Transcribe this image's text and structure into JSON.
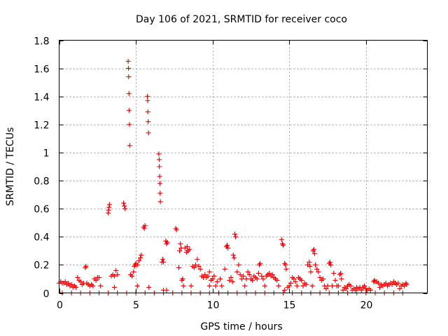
{
  "chart_data": {
    "type": "scatter",
    "title": "Day 106 of 2021, SRMTID for receiver coco",
    "xlabel": "GPS time / hours",
    "ylabel": "SRMTID / TECUs",
    "xlim": [
      0,
      24
    ],
    "ylim": [
      0,
      1.8
    ],
    "xticks": [
      0,
      5,
      10,
      15,
      20
    ],
    "xtick_labels": [
      "0",
      "5",
      "10",
      "15",
      "20"
    ],
    "yticks": [
      0,
      0.2,
      0.4,
      0.6,
      0.8,
      1,
      1.2,
      1.4,
      1.6,
      1.8
    ],
    "ytick_labels": [
      "0",
      "0.2",
      "0.4",
      "0.6",
      "0.8",
      "1",
      "1.2",
      "1.4",
      "1.6",
      "1.8"
    ],
    "grid": true,
    "marker": "+",
    "color": "#e00000",
    "series": [
      {
        "name": "SRMTID",
        "points": [
          [
            0.0,
            0.07
          ],
          [
            0.1,
            0.08
          ],
          [
            0.2,
            0.07
          ],
          [
            0.3,
            0.07
          ],
          [
            0.4,
            0.08
          ],
          [
            0.5,
            0.06
          ],
          [
            0.6,
            0.07
          ],
          [
            0.7,
            0.05
          ],
          [
            0.8,
            0.06
          ],
          [
            0.9,
            0.04
          ],
          [
            1.0,
            0.05
          ],
          [
            1.1,
            0.04
          ],
          [
            1.2,
            0.11
          ],
          [
            1.3,
            0.09
          ],
          [
            1.4,
            0.08
          ],
          [
            1.5,
            0.06
          ],
          [
            1.6,
            0.07
          ],
          [
            1.7,
            0.18
          ],
          [
            1.75,
            0.19
          ],
          [
            1.8,
            0.07
          ],
          [
            1.9,
            0.06
          ],
          [
            2.0,
            0.05
          ],
          [
            2.1,
            0.06
          ],
          [
            2.2,
            0.05
          ],
          [
            2.3,
            0.1
          ],
          [
            2.4,
            0.09
          ],
          [
            2.5,
            0.11
          ],
          [
            2.6,
            0.11
          ],
          [
            2.7,
            0.05
          ],
          [
            3.2,
            0.57
          ],
          [
            3.22,
            0.59
          ],
          [
            3.25,
            0.61
          ],
          [
            3.28,
            0.63
          ],
          [
            3.4,
            0.12
          ],
          [
            3.5,
            0.13
          ],
          [
            3.6,
            0.12
          ],
          [
            3.7,
            0.16
          ],
          [
            3.8,
            0.13
          ],
          [
            3.6,
            0.04
          ],
          [
            4.2,
            0.64
          ],
          [
            4.25,
            0.62
          ],
          [
            4.3,
            0.6
          ],
          [
            4.5,
            1.65
          ],
          [
            4.52,
            1.6
          ],
          [
            4.53,
            1.54
          ],
          [
            4.55,
            1.42
          ],
          [
            4.56,
            1.3
          ],
          [
            4.58,
            1.2
          ],
          [
            4.6,
            1.05
          ],
          [
            4.65,
            0.13
          ],
          [
            4.75,
            0.12
          ],
          [
            4.85,
            0.15
          ],
          [
            4.9,
            0.19
          ],
          [
            4.95,
            0.2
          ],
          [
            5.0,
            0.21
          ],
          [
            5.1,
            0.2
          ],
          [
            5.2,
            0.23
          ],
          [
            5.3,
            0.25
          ],
          [
            5.35,
            0.27
          ],
          [
            5.1,
            0.05
          ],
          [
            5.5,
            0.47
          ],
          [
            5.55,
            0.46
          ],
          [
            5.6,
            0.48
          ],
          [
            5.75,
            1.4
          ],
          [
            5.77,
            1.37
          ],
          [
            5.78,
            1.29
          ],
          [
            5.8,
            1.22
          ],
          [
            5.82,
            1.14
          ],
          [
            5.85,
            0.04
          ],
          [
            6.5,
            0.99
          ],
          [
            6.52,
            0.95
          ],
          [
            6.53,
            0.9
          ],
          [
            6.55,
            0.83
          ],
          [
            6.57,
            0.78
          ],
          [
            6.58,
            0.71
          ],
          [
            6.6,
            0.65
          ],
          [
            6.7,
            0.22
          ],
          [
            6.75,
            0.24
          ],
          [
            6.8,
            0.22
          ],
          [
            6.8,
            0.02
          ],
          [
            6.95,
            0.37
          ],
          [
            7.0,
            0.35
          ],
          [
            7.05,
            0.36
          ],
          [
            7.0,
            0.02
          ],
          [
            7.6,
            0.46
          ],
          [
            7.65,
            0.45
          ],
          [
            7.8,
            0.18
          ],
          [
            7.85,
            0.3
          ],
          [
            7.9,
            0.35
          ],
          [
            7.95,
            0.32
          ],
          [
            8.0,
            0.09
          ],
          [
            8.05,
            0.1
          ],
          [
            8.1,
            0.05
          ],
          [
            8.2,
            0.32
          ],
          [
            8.3,
            0.29
          ],
          [
            8.35,
            0.33
          ],
          [
            8.4,
            0.3
          ],
          [
            8.5,
            0.31
          ],
          [
            8.6,
            0.05
          ],
          [
            8.7,
            0.19
          ],
          [
            8.8,
            0.18
          ],
          [
            8.9,
            0.2
          ],
          [
            9.0,
            0.24
          ],
          [
            9.1,
            0.19
          ],
          [
            9.2,
            0.17
          ],
          [
            9.3,
            0.12
          ],
          [
            9.4,
            0.11
          ],
          [
            9.5,
            0.13
          ],
          [
            9.6,
            0.11
          ],
          [
            9.7,
            0.12
          ],
          [
            9.8,
            0.15
          ],
          [
            9.9,
            0.09
          ],
          [
            10.0,
            0.1
          ],
          [
            9.8,
            0.05
          ],
          [
            10.1,
            0.12
          ],
          [
            10.2,
            0.05
          ],
          [
            10.3,
            0.08
          ],
          [
            10.5,
            0.1
          ],
          [
            10.6,
            0.05
          ],
          [
            10.8,
            0.17
          ],
          [
            10.9,
            0.33
          ],
          [
            10.95,
            0.34
          ],
          [
            11.0,
            0.32
          ],
          [
            11.1,
            0.09
          ],
          [
            11.2,
            0.11
          ],
          [
            11.3,
            0.08
          ],
          [
            11.35,
            0.27
          ],
          [
            11.4,
            0.25
          ],
          [
            11.45,
            0.42
          ],
          [
            11.5,
            0.4
          ],
          [
            11.6,
            0.15
          ],
          [
            11.7,
            0.2
          ],
          [
            11.8,
            0.13
          ],
          [
            11.9,
            0.1
          ],
          [
            12.0,
            0.12
          ],
          [
            12.1,
            0.05
          ],
          [
            12.2,
            0.1
          ],
          [
            12.3,
            0.15
          ],
          [
            12.4,
            0.13
          ],
          [
            12.5,
            0.1
          ],
          [
            12.6,
            0.09
          ],
          [
            12.7,
            0.12
          ],
          [
            12.8,
            0.11
          ],
          [
            12.9,
            0.1
          ],
          [
            13.0,
            0.14
          ],
          [
            13.05,
            0.2
          ],
          [
            13.1,
            0.21
          ],
          [
            13.2,
            0.12
          ],
          [
            13.3,
            0.1
          ],
          [
            13.4,
            0.05
          ],
          [
            13.5,
            0.12
          ],
          [
            13.6,
            0.13
          ],
          [
            13.7,
            0.14
          ],
          [
            13.8,
            0.12
          ],
          [
            13.9,
            0.13
          ],
          [
            14.0,
            0.11
          ],
          [
            14.1,
            0.1
          ],
          [
            14.2,
            0.09
          ],
          [
            14.3,
            0.05
          ],
          [
            14.5,
            0.38
          ],
          [
            14.55,
            0.35
          ],
          [
            14.6,
            0.34
          ],
          [
            14.7,
            0.21
          ],
          [
            14.75,
            0.2
          ],
          [
            14.8,
            0.17
          ],
          [
            14.7,
            0.02
          ],
          [
            14.9,
            0.04
          ],
          [
            15.0,
            0.05
          ],
          [
            15.1,
            0.07
          ],
          [
            15.2,
            0.11
          ],
          [
            15.3,
            0.1
          ],
          [
            15.4,
            0.08
          ],
          [
            15.5,
            0.05
          ],
          [
            15.6,
            0.11
          ],
          [
            15.7,
            0.1
          ],
          [
            15.8,
            0.09
          ],
          [
            15.9,
            0.05
          ],
          [
            16.0,
            0.07
          ],
          [
            16.1,
            0.06
          ],
          [
            16.2,
            0.2
          ],
          [
            16.3,
            0.22
          ],
          [
            16.35,
            0.19
          ],
          [
            16.4,
            0.15
          ],
          [
            16.5,
            0.05
          ],
          [
            16.55,
            0.3
          ],
          [
            16.6,
            0.31
          ],
          [
            16.65,
            0.28
          ],
          [
            16.7,
            0.2
          ],
          [
            16.8,
            0.17
          ],
          [
            16.9,
            0.15
          ],
          [
            17.0,
            0.11
          ],
          [
            17.1,
            0.09
          ],
          [
            17.2,
            0.1
          ],
          [
            17.3,
            0.05
          ],
          [
            17.4,
            0.03
          ],
          [
            17.5,
            0.05
          ],
          [
            17.6,
            0.21
          ],
          [
            17.65,
            0.22
          ],
          [
            17.7,
            0.2
          ],
          [
            17.8,
            0.05
          ],
          [
            17.9,
            0.14
          ],
          [
            18.0,
            0.09
          ],
          [
            18.1,
            0.05
          ],
          [
            18.2,
            0.05
          ],
          [
            18.3,
            0.13
          ],
          [
            18.35,
            0.14
          ],
          [
            18.4,
            0.1
          ],
          [
            18.5,
            0.02
          ],
          [
            18.6,
            0.04
          ],
          [
            18.7,
            0.03
          ],
          [
            18.8,
            0.05
          ],
          [
            18.9,
            0.06
          ],
          [
            19.0,
            0.05
          ],
          [
            19.1,
            0.02
          ],
          [
            19.2,
            0.03
          ],
          [
            19.3,
            0.02
          ],
          [
            19.4,
            0.04
          ],
          [
            19.5,
            0.03
          ],
          [
            19.6,
            0.04
          ],
          [
            19.7,
            0.02
          ],
          [
            19.8,
            0.04
          ],
          [
            19.9,
            0.05
          ],
          [
            20.0,
            0.03
          ],
          [
            20.1,
            0.02
          ],
          [
            20.2,
            0.03
          ],
          [
            20.3,
            0.02
          ],
          [
            20.5,
            0.08
          ],
          [
            20.55,
            0.09
          ],
          [
            20.6,
            0.08
          ],
          [
            20.7,
            0.08
          ],
          [
            20.8,
            0.07
          ],
          [
            20.9,
            0.04
          ],
          [
            21.0,
            0.06
          ],
          [
            21.1,
            0.05
          ],
          [
            21.2,
            0.06
          ],
          [
            21.3,
            0.07
          ],
          [
            21.4,
            0.05
          ],
          [
            21.5,
            0.06
          ],
          [
            21.6,
            0.07
          ],
          [
            21.7,
            0.06
          ],
          [
            21.8,
            0.08
          ],
          [
            21.9,
            0.07
          ],
          [
            22.0,
            0.06
          ],
          [
            22.1,
            0.07
          ],
          [
            22.2,
            0.03
          ],
          [
            22.3,
            0.05
          ],
          [
            22.4,
            0.06
          ],
          [
            22.5,
            0.05
          ],
          [
            22.6,
            0.07
          ],
          [
            22.65,
            0.06
          ],
          [
            0.2,
            0.0
          ],
          [
            0.8,
            0.0
          ],
          [
            1.4,
            0.0
          ],
          [
            2.0,
            0.0
          ],
          [
            2.6,
            0.0
          ],
          [
            3.2,
            0.0
          ],
          [
            3.8,
            0.0
          ],
          [
            4.4,
            0.0
          ],
          [
            5.0,
            0.0
          ],
          [
            5.6,
            0.0
          ],
          [
            6.2,
            0.0
          ],
          [
            6.8,
            0.0
          ],
          [
            7.4,
            0.0
          ],
          [
            8.0,
            0.0
          ],
          [
            8.6,
            0.0
          ],
          [
            9.2,
            0.0
          ],
          [
            9.8,
            0.0
          ],
          [
            10.4,
            0.0
          ],
          [
            11.0,
            0.0
          ],
          [
            11.6,
            0.0
          ],
          [
            12.2,
            0.0
          ],
          [
            12.8,
            0.0
          ],
          [
            13.4,
            0.0
          ],
          [
            14.0,
            0.0
          ],
          [
            14.6,
            0.0
          ],
          [
            15.2,
            0.0
          ],
          [
            15.8,
            0.0
          ],
          [
            16.4,
            0.0
          ],
          [
            17.0,
            0.0
          ],
          [
            17.6,
            0.0
          ],
          [
            18.2,
            0.0
          ],
          [
            18.8,
            0.0
          ],
          [
            19.4,
            0.0
          ],
          [
            20.0,
            0.0
          ],
          [
            20.6,
            0.0
          ],
          [
            21.2,
            0.0
          ],
          [
            21.8,
            0.0
          ],
          [
            22.4,
            0.0
          ]
        ]
      }
    ]
  }
}
